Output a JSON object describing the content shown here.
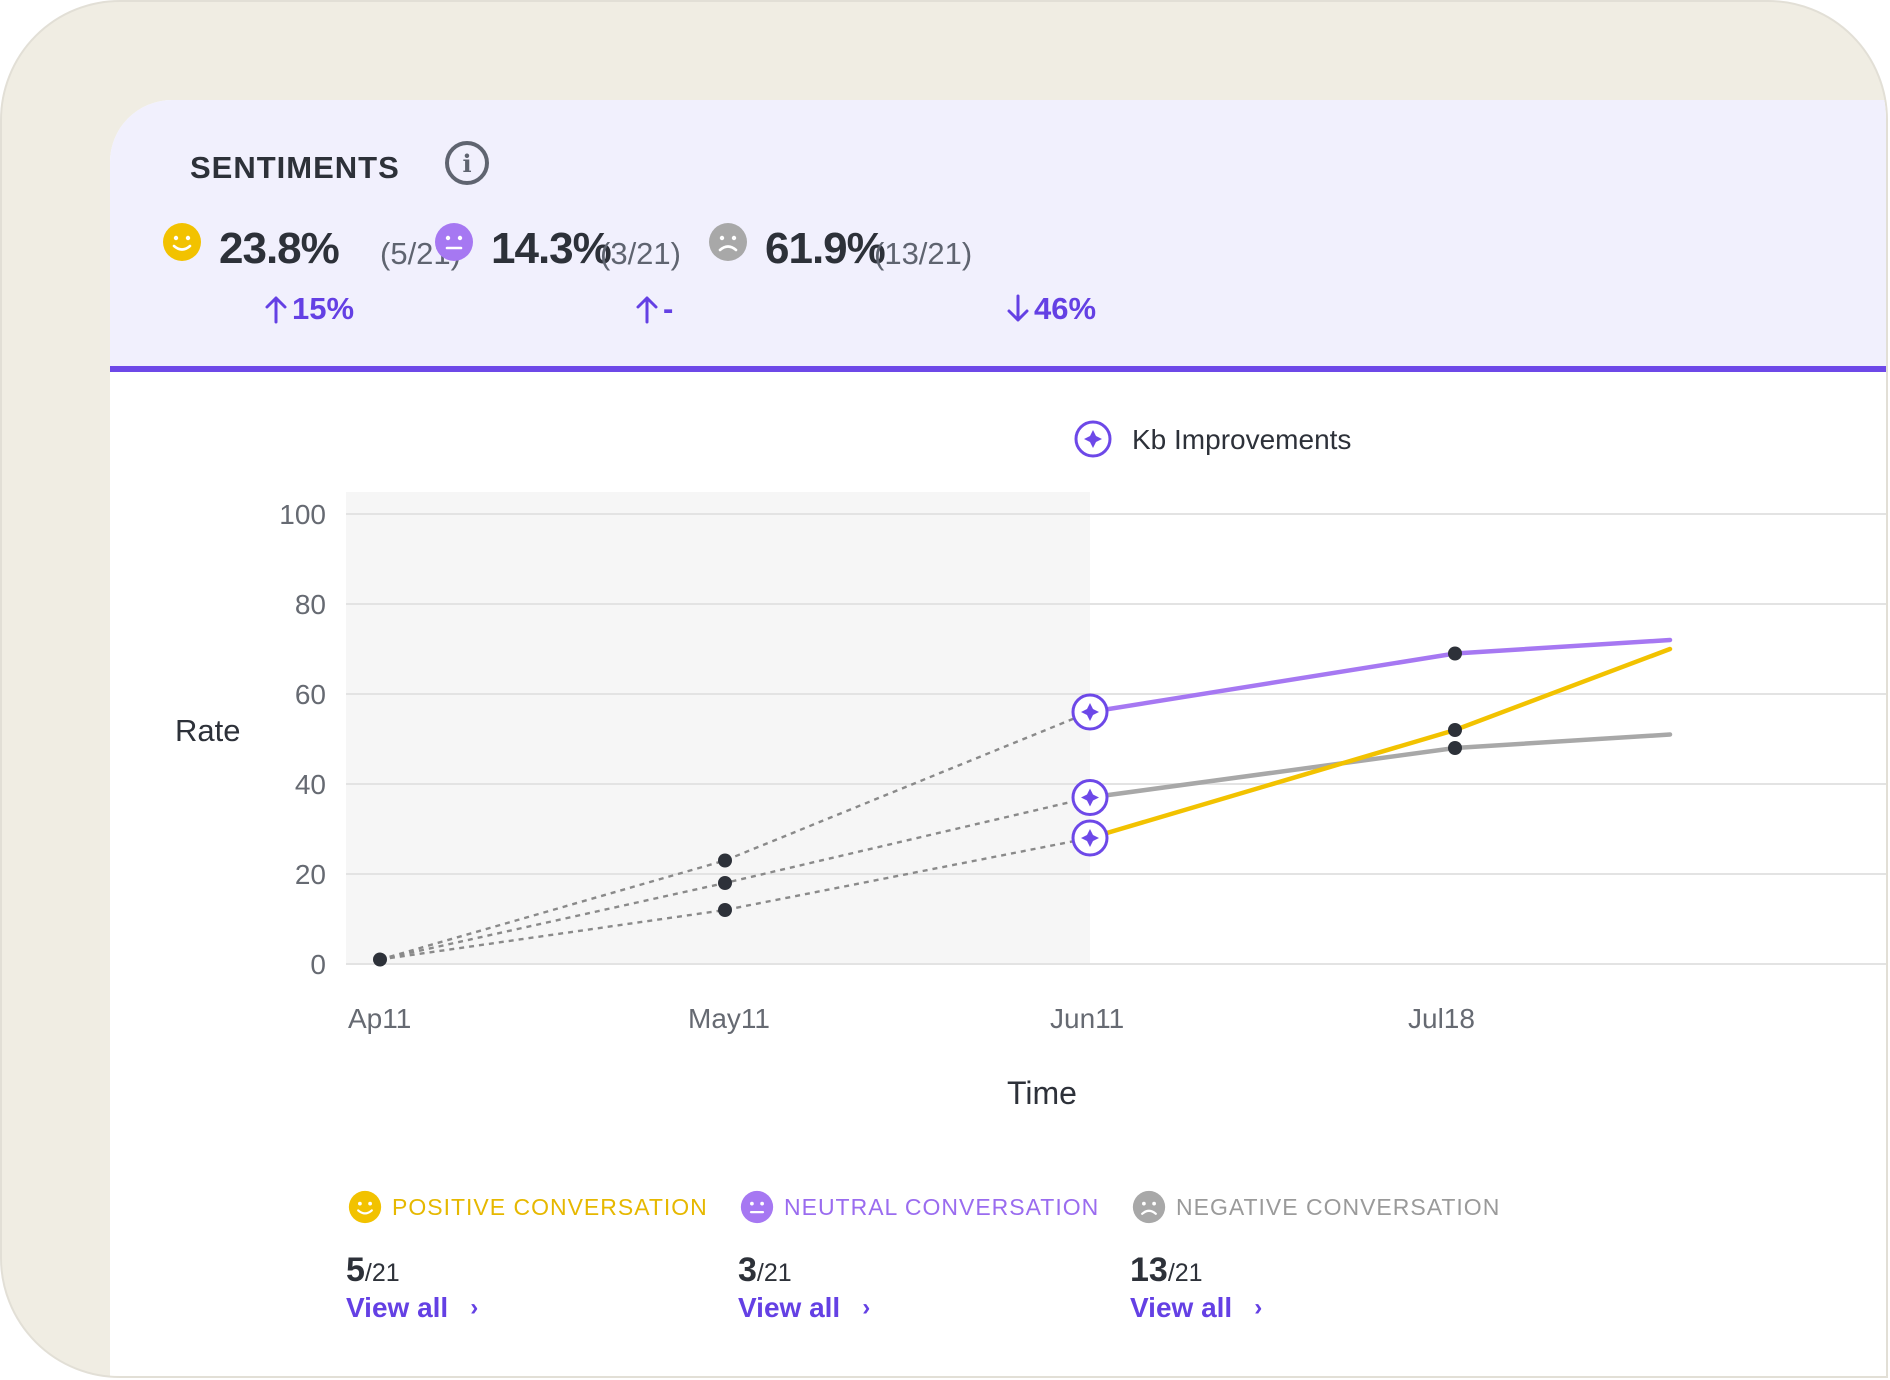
{
  "header": {
    "title": "SENTIMENTS",
    "stats": [
      {
        "percent": "23.8%",
        "count": "(5/21)",
        "delta": "15%",
        "delta_direction": "up",
        "color": "#f2c200"
      },
      {
        "percent": "14.3%",
        "count": "(3/21)",
        "delta": "-",
        "delta_direction": "up",
        "color": "#a678f2"
      },
      {
        "percent": "61.9%",
        "count": "(13/21)",
        "delta": "46%",
        "delta_direction": "down",
        "color": "#a8a8a8"
      }
    ]
  },
  "chart_data": {
    "type": "line",
    "annotation_label": "Kb Improvements",
    "xlabel": "Time",
    "ylabel": "Rate",
    "ylim": [
      0,
      100
    ],
    "y_ticks": [
      0,
      20,
      40,
      60,
      80,
      100
    ],
    "x_tick_labels": [
      "Ap11",
      "May11",
      "Jun11",
      "Jul18"
    ],
    "x": [
      "Apr 11",
      "May 11",
      "Jun 11",
      "Jul 18",
      "Aug 5"
    ],
    "shaded_region": [
      "Apr 11",
      "Jun 11"
    ],
    "annotation_x": "Jun 11",
    "grid": true,
    "series": [
      {
        "id": "neutral",
        "color": "#a678f2",
        "values": [
          1,
          23,
          56,
          69,
          72
        ]
      },
      {
        "id": "negative",
        "color": "#a8a8a8",
        "values": [
          1,
          18,
          37,
          48,
          51
        ]
      },
      {
        "id": "positive",
        "color": "#f2c200",
        "values": [
          1,
          12,
          28,
          52,
          70
        ]
      }
    ]
  },
  "legend": [
    {
      "label": "POSITIVE CONVERSATION",
      "color": "#f2c200",
      "num": "5",
      "den": "/21",
      "link": "View all"
    },
    {
      "label": "NEUTRAL CONVERSATION",
      "color": "#a678f2",
      "num": "3",
      "den": "/21",
      "link": "View all"
    },
    {
      "label": "NEGATIVE CONVERSATION",
      "color": "#a8a8a8",
      "num": "13",
      "den": "/21",
      "link": "View all"
    }
  ],
  "colors": {
    "accent": "#6440e4",
    "header_bg": "#f1f0fd"
  }
}
